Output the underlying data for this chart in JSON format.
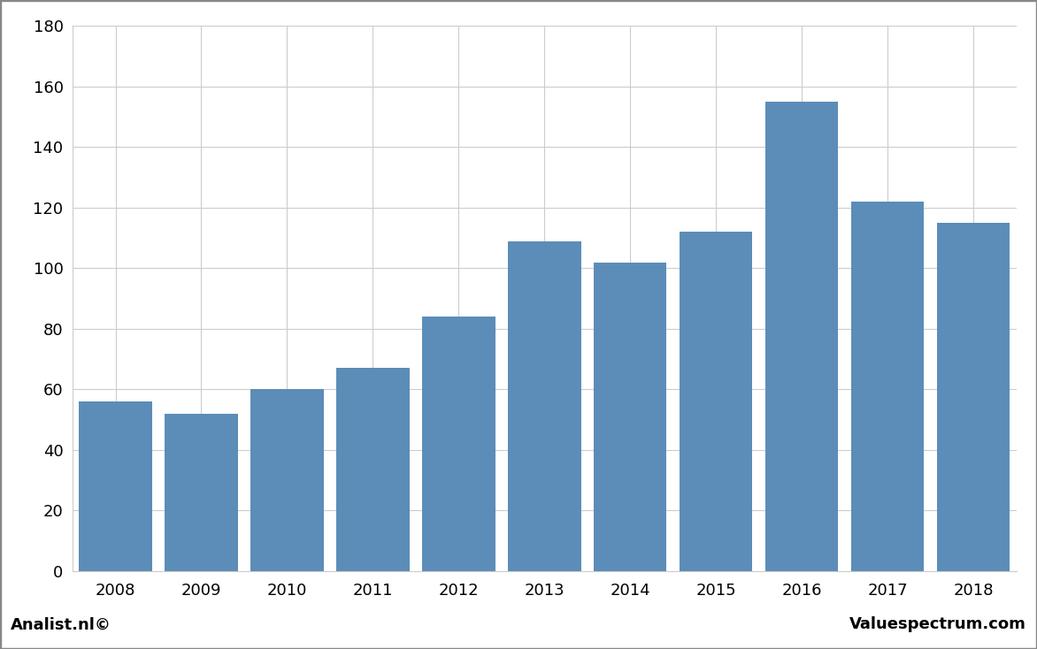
{
  "years": [
    "2008",
    "2009",
    "2010",
    "2011",
    "2012",
    "2013",
    "2014",
    "2015",
    "2016",
    "2017",
    "2018"
  ],
  "values": [
    56,
    52,
    60,
    67,
    84,
    109,
    102,
    112,
    155,
    122,
    115
  ],
  "bar_color": "#5b8db8",
  "background_color": "#ffffff",
  "plot_bg_color": "#ffffff",
  "grid_color": "#cccccc",
  "footer_bg_color": "#d9d9d9",
  "ylim": [
    0,
    180
  ],
  "yticks": [
    0,
    20,
    40,
    60,
    80,
    100,
    120,
    140,
    160,
    180
  ],
  "footer_left": "Analist.nl©",
  "footer_right": "Valuespectrum.com",
  "outer_border_color": "#888888",
  "bar_width": 0.85
}
